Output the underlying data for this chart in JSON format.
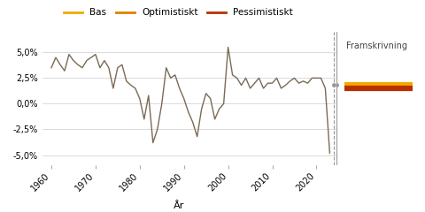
{
  "xlabel": "År",
  "legend_labels": [
    "Bas",
    "Optimistiskt",
    "Pessimistiskt"
  ],
  "legend_colors": [
    "#F5A800",
    "#E08000",
    "#B83000"
  ],
  "framskrivning_label": "Framskrivning",
  "historical_color": "#7a6a55",
  "bas_value": 1.8,
  "pessimistiskt_value": 1.5,
  "ylim": [
    -6.0,
    7.0
  ],
  "yticks": [
    -5.0,
    -2.5,
    0.0,
    2.5,
    5.0
  ],
  "xticks": [
    1960,
    1970,
    1980,
    1990,
    2000,
    2010,
    2020
  ],
  "years": [
    1960,
    1961,
    1962,
    1963,
    1964,
    1965,
    1966,
    1967,
    1968,
    1969,
    1970,
    1971,
    1972,
    1973,
    1974,
    1975,
    1976,
    1977,
    1978,
    1979,
    1980,
    1981,
    1982,
    1983,
    1984,
    1985,
    1986,
    1987,
    1988,
    1989,
    1990,
    1991,
    1992,
    1993,
    1994,
    1995,
    1996,
    1997,
    1998,
    1999,
    2000,
    2001,
    2002,
    2003,
    2004,
    2005,
    2006,
    2007,
    2008,
    2009,
    2010,
    2011,
    2012,
    2013,
    2014,
    2015,
    2016,
    2017,
    2018,
    2019,
    2020,
    2021,
    2022,
    2023
  ],
  "values": [
    3.5,
    4.5,
    3.8,
    3.2,
    4.8,
    4.2,
    3.8,
    3.5,
    4.2,
    4.5,
    4.8,
    3.5,
    4.2,
    3.5,
    1.5,
    3.5,
    3.8,
    2.2,
    1.8,
    1.5,
    0.5,
    -1.5,
    0.8,
    -3.8,
    -2.5,
    0.0,
    3.5,
    2.5,
    2.8,
    1.5,
    0.5,
    -0.8,
    -1.8,
    -3.2,
    -0.5,
    1.0,
    0.5,
    -1.5,
    -0.5,
    0.0,
    5.5,
    2.8,
    2.5,
    1.8,
    2.5,
    1.5,
    2.0,
    2.5,
    1.5,
    2.0,
    2.0,
    2.5,
    1.5,
    1.8,
    2.2,
    2.5,
    2.0,
    2.2,
    2.0,
    2.5,
    2.5,
    2.5,
    1.5,
    -4.8
  ]
}
